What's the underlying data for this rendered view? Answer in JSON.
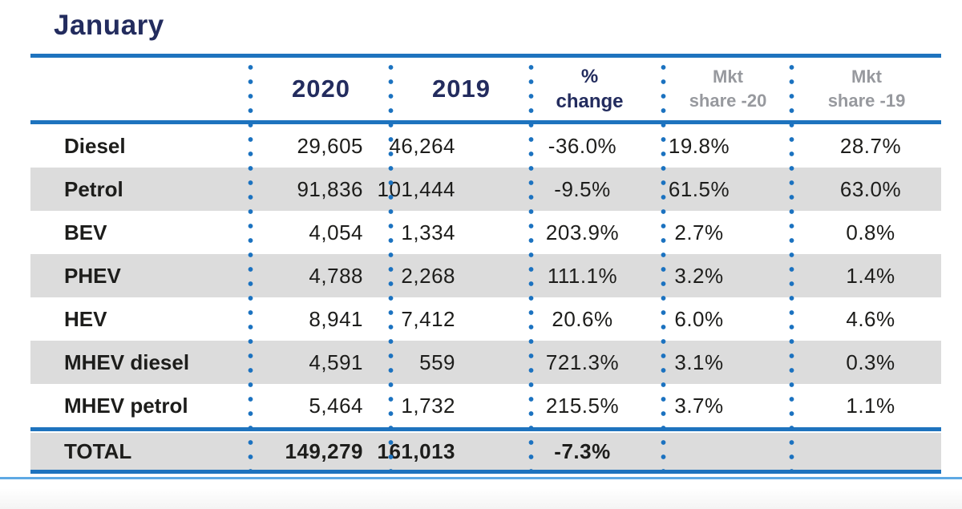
{
  "title": "January",
  "table": {
    "header": {
      "year_2020": "2020",
      "year_2019": "2019",
      "pct_line1": "%",
      "pct_line2": "change",
      "mkt20_line1": "Mkt",
      "mkt20_line2": "share -20",
      "mkt19_line1": "Mkt",
      "mkt19_line2": "share -19"
    },
    "rows": [
      {
        "label": "Diesel",
        "y2020": "29,605",
        "y2019": "46,264",
        "pct": "-36.0%",
        "mkt20": "19.8%",
        "mkt19": "28.7%",
        "shaded": false
      },
      {
        "label": "Petrol",
        "y2020": "91,836",
        "y2019": "101,444",
        "pct": "-9.5%",
        "mkt20": "61.5%",
        "mkt19": "63.0%",
        "shaded": true
      },
      {
        "label": "BEV",
        "y2020": "4,054",
        "y2019": "1,334",
        "pct": "203.9%",
        "mkt20": "2.7%",
        "mkt19": "0.8%",
        "shaded": false
      },
      {
        "label": "PHEV",
        "y2020": "4,788",
        "y2019": "2,268",
        "pct": "111.1%",
        "mkt20": "3.2%",
        "mkt19": "1.4%",
        "shaded": true
      },
      {
        "label": "HEV",
        "y2020": "8,941",
        "y2019": "7,412",
        "pct": "20.6%",
        "mkt20": "6.0%",
        "mkt19": "4.6%",
        "shaded": false
      },
      {
        "label": "MHEV diesel",
        "y2020": "4,591",
        "y2019": "559",
        "pct": "721.3%",
        "mkt20": "3.1%",
        "mkt19": "0.3%",
        "shaded": true
      },
      {
        "label": "MHEV petrol",
        "y2020": "5,464",
        "y2019": "1,732",
        "pct": "215.5%",
        "mkt20": "3.7%",
        "mkt19": "1.1%",
        "shaded": false
      }
    ],
    "total": {
      "label": "TOTAL",
      "y2020": "149,279",
      "y2019": "161,013",
      "pct": "-7.3%",
      "mkt20": "",
      "mkt19": ""
    }
  },
  "chart_data": {
    "type": "table",
    "title": "January",
    "columns": [
      "",
      "2020",
      "2019",
      "% change",
      "Mkt share -20",
      "Mkt share -19"
    ],
    "rows": [
      [
        "Diesel",
        "29,605",
        "46,264",
        "-36.0%",
        "19.8%",
        "28.7%"
      ],
      [
        "Petrol",
        "91,836",
        "101,444",
        "-9.5%",
        "61.5%",
        "63.0%"
      ],
      [
        "BEV",
        "4,054",
        "1,334",
        "203.9%",
        "2.7%",
        "0.8%"
      ],
      [
        "PHEV",
        "4,788",
        "2,268",
        "111.1%",
        "3.2%",
        "1.4%"
      ],
      [
        "HEV",
        "8,941",
        "7,412",
        "20.6%",
        "6.0%",
        "4.6%"
      ],
      [
        "MHEV diesel",
        "4,591",
        "559",
        "721.3%",
        "3.1%",
        "0.3%"
      ],
      [
        "MHEV petrol",
        "5,464",
        "1,732",
        "215.5%",
        "3.7%",
        "1.1%"
      ],
      [
        "TOTAL",
        "149,279",
        "161,013",
        "-7.3%",
        "",
        ""
      ]
    ],
    "layout_hints": {
      "shaded_rows": [
        1,
        3,
        5
      ],
      "total_row_shaded": true,
      "separator_style": "blue dotted vertical lines"
    }
  },
  "colors": {
    "navy": "#232C5E",
    "line_blue": "#1E73BE",
    "dot_blue": "#1B72C0",
    "row_shade": "#DCDCDC",
    "header_gray": "#97999E",
    "text": "#1D1D1B",
    "accent_light": "#5EA9E4"
  }
}
